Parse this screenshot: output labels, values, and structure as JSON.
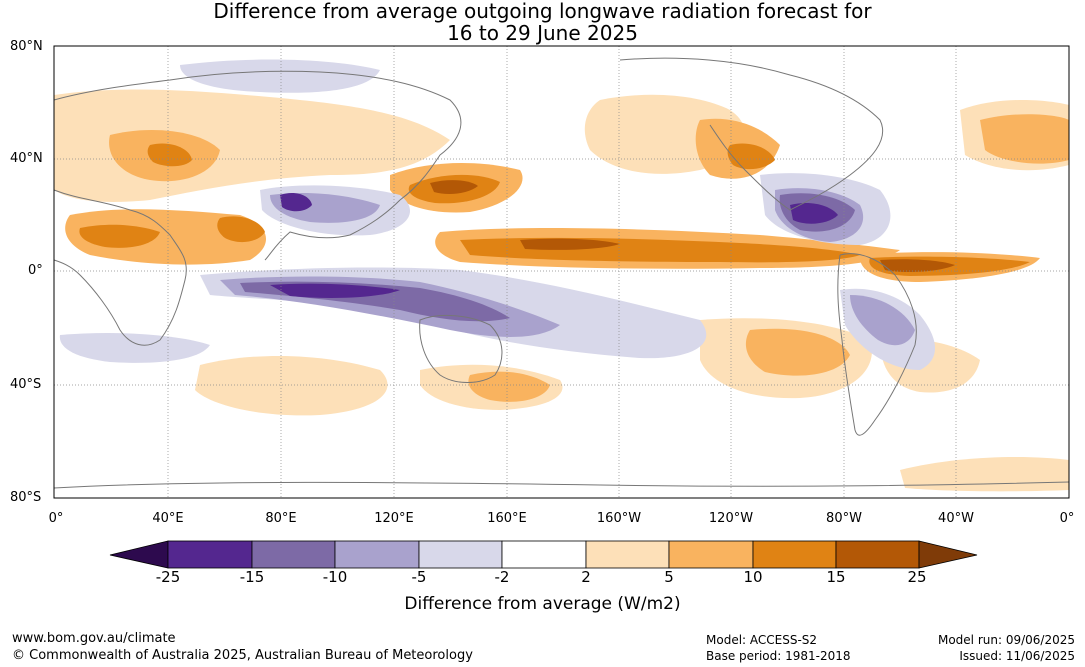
{
  "title_line1": "Difference from average outgoing longwave radiation forecast for",
  "title_line2": "16 to 29 June 2025",
  "lat_labels": [
    "80°N",
    "40°N",
    "0°",
    "40°S",
    "80°S"
  ],
  "lon_labels": [
    "0°",
    "40°E",
    "80°E",
    "120°E",
    "160°E",
    "160°W",
    "120°W",
    "80°W",
    "40°W",
    "0°"
  ],
  "colorbar": {
    "title": "Difference from average (W/m2)",
    "tick_labels": [
      "-25",
      "-15",
      "-10",
      "-5",
      "-2",
      "2",
      "5",
      "10",
      "15",
      "25"
    ],
    "colors": {
      "below_min": "#2d0a4e",
      "n25_15": "#54278f",
      "n15_10": "#7d6aa6",
      "n10_5": "#a9a2cd",
      "n5_2": "#d8d8ea",
      "n2_2": "#ffffff",
      "p2_5": "#fde0b8",
      "p5_10": "#f9b35f",
      "p10_15": "#e08314",
      "p15_25": "#b35806",
      "above_max": "#7f3b08"
    }
  },
  "footer": {
    "url": "www.bom.gov.au/climate",
    "copyright": "© Commonwealth of Australia 2025, Australian Bureau of Meteorology",
    "model": "Model: ACCESS-S2",
    "base_period": "Base period: 1981-2018",
    "model_run": "Model run: 09/06/2025",
    "issued": "Issued: 11/06/2025"
  }
}
